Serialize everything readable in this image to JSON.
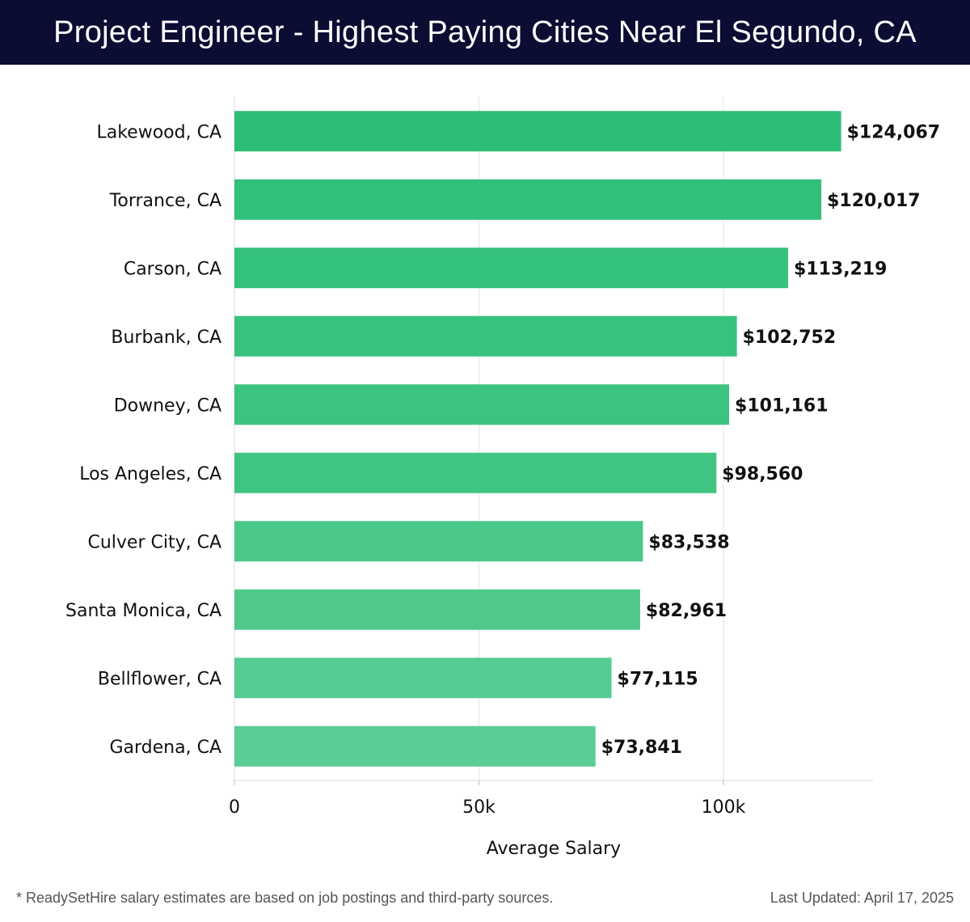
{
  "chart_data": {
    "type": "bar",
    "orientation": "horizontal",
    "title": "Project Engineer - Highest Paying Cities Near El Segundo, CA",
    "xlabel": "Average Salary",
    "ylabel": "",
    "xlim": [
      0,
      130000
    ],
    "xticks": [
      {
        "value": 0,
        "label": "0"
      },
      {
        "value": 50000,
        "label": "50k"
      },
      {
        "value": 100000,
        "label": "100k"
      }
    ],
    "grid": true,
    "categories": [
      "Lakewood, CA",
      "Torrance, CA",
      "Carson, CA",
      "Burbank, CA",
      "Downey, CA",
      "Los Angeles, CA",
      "Culver City, CA",
      "Santa Monica, CA",
      "Bellflower, CA",
      "Gardena, CA"
    ],
    "values": [
      124067,
      120017,
      113219,
      102752,
      101161,
      98560,
      83538,
      82961,
      77115,
      73841
    ],
    "value_labels": [
      "$124,067",
      "$120,017",
      "$113,219",
      "$102,752",
      "$101,161",
      "$98,560",
      "$83,538",
      "$82,961",
      "$77,115",
      "$73,841"
    ],
    "colors": [
      "#2ebd77",
      "#31bf79",
      "#34c17b",
      "#39c27e",
      "#3cc380",
      "#40c482",
      "#4ac888",
      "#4fc98b",
      "#55cc91",
      "#59cd94"
    ]
  },
  "footer": {
    "note": "* ReadySetHire salary estimates are based on job postings and third-party sources.",
    "updated": "Last Updated: April 17, 2025"
  }
}
